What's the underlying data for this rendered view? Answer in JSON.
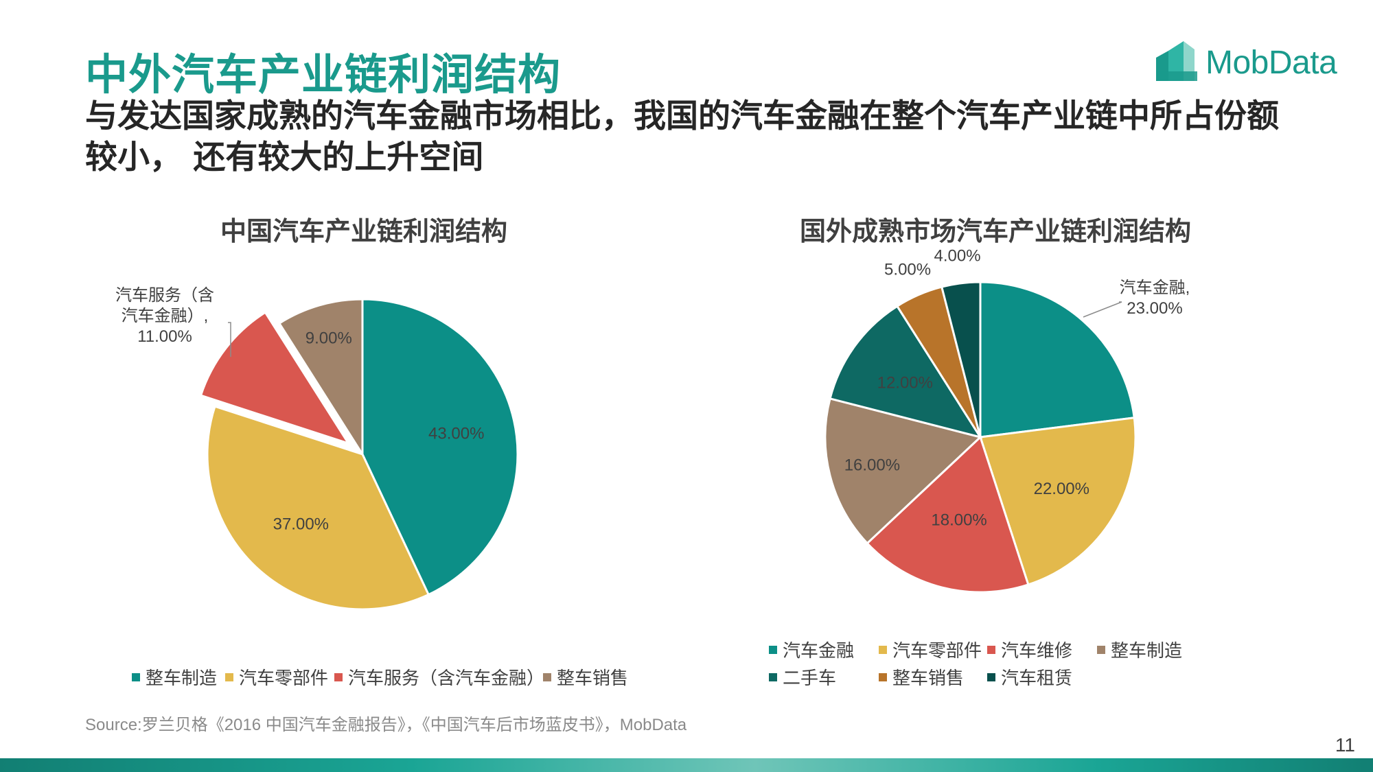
{
  "header": {
    "title": "中外汽车产业链利润结构",
    "subtitle": "与发达国家成熟的汽车金融市场相比，我国的汽车金融在整个汽车产业链中所占份额较小， 还有较大的上升空间"
  },
  "logo": {
    "text": "MobData"
  },
  "colors": {
    "brand": "#1a9a8c",
    "teal": "#0c8f87",
    "gold": "#e3b94c",
    "red": "#d9574f",
    "taupe": "#a0836a",
    "dark_teal": "#0e6963",
    "orange_brown": "#b8742a",
    "deep_teal": "#08504d"
  },
  "chart_data": [
    {
      "type": "pie",
      "title": "中国汽车产业链利润结构",
      "slices": [
        {
          "name": "整车制造",
          "value": 43.0,
          "label": "43.00%",
          "color": "#0c8f87"
        },
        {
          "name": "汽车零部件",
          "value": 37.0,
          "label": "37.00%",
          "color": "#e3b94c"
        },
        {
          "name": "汽车服务（含汽车金融）",
          "value": 11.0,
          "label": "11.00%",
          "color": "#d9574f",
          "callout": [
            "汽车服务（含",
            "汽车金融）,",
            "11.00%"
          ]
        },
        {
          "name": "整车销售",
          "value": 9.0,
          "label": "9.00%",
          "color": "#a0836a"
        }
      ],
      "legend": [
        "整车制造",
        "汽车零部件",
        "汽车服务（含汽车金融）",
        "整车销售"
      ],
      "legend_position": "bottom"
    },
    {
      "type": "pie",
      "title": "国外成熟市场汽车产业链利润结构",
      "slices": [
        {
          "name": "汽车金融",
          "value": 23.0,
          "label": "23.00%",
          "color": "#0c8f87",
          "callout": [
            "汽车金融,",
            "23.00%"
          ]
        },
        {
          "name": "汽车零部件",
          "value": 22.0,
          "label": "22.00%",
          "color": "#e3b94c"
        },
        {
          "name": "汽车维修",
          "value": 18.0,
          "label": "18.00%",
          "color": "#d9574f"
        },
        {
          "name": "整车制造",
          "value": 16.0,
          "label": "16.00%",
          "color": "#a0836a"
        },
        {
          "name": "二手车",
          "value": 12.0,
          "label": "12.00%",
          "color": "#0e6963"
        },
        {
          "name": "整车销售",
          "value": 5.0,
          "label": "5.00%",
          "color": "#b8742a"
        },
        {
          "name": "汽车租赁",
          "value": 4.0,
          "label": "4.00%",
          "color": "#08504d"
        }
      ],
      "legend": [
        "汽车金融",
        "汽车零部件",
        "汽车维修",
        "整车制造",
        "二手车",
        "整车销售",
        "汽车租赁"
      ],
      "legend_position": "bottom"
    }
  ],
  "footer": {
    "source": "Source:罗兰贝格《2016 中国汽车金融报告》，《中国汽车后市场蓝皮书》，MobData",
    "page_number": "11"
  }
}
